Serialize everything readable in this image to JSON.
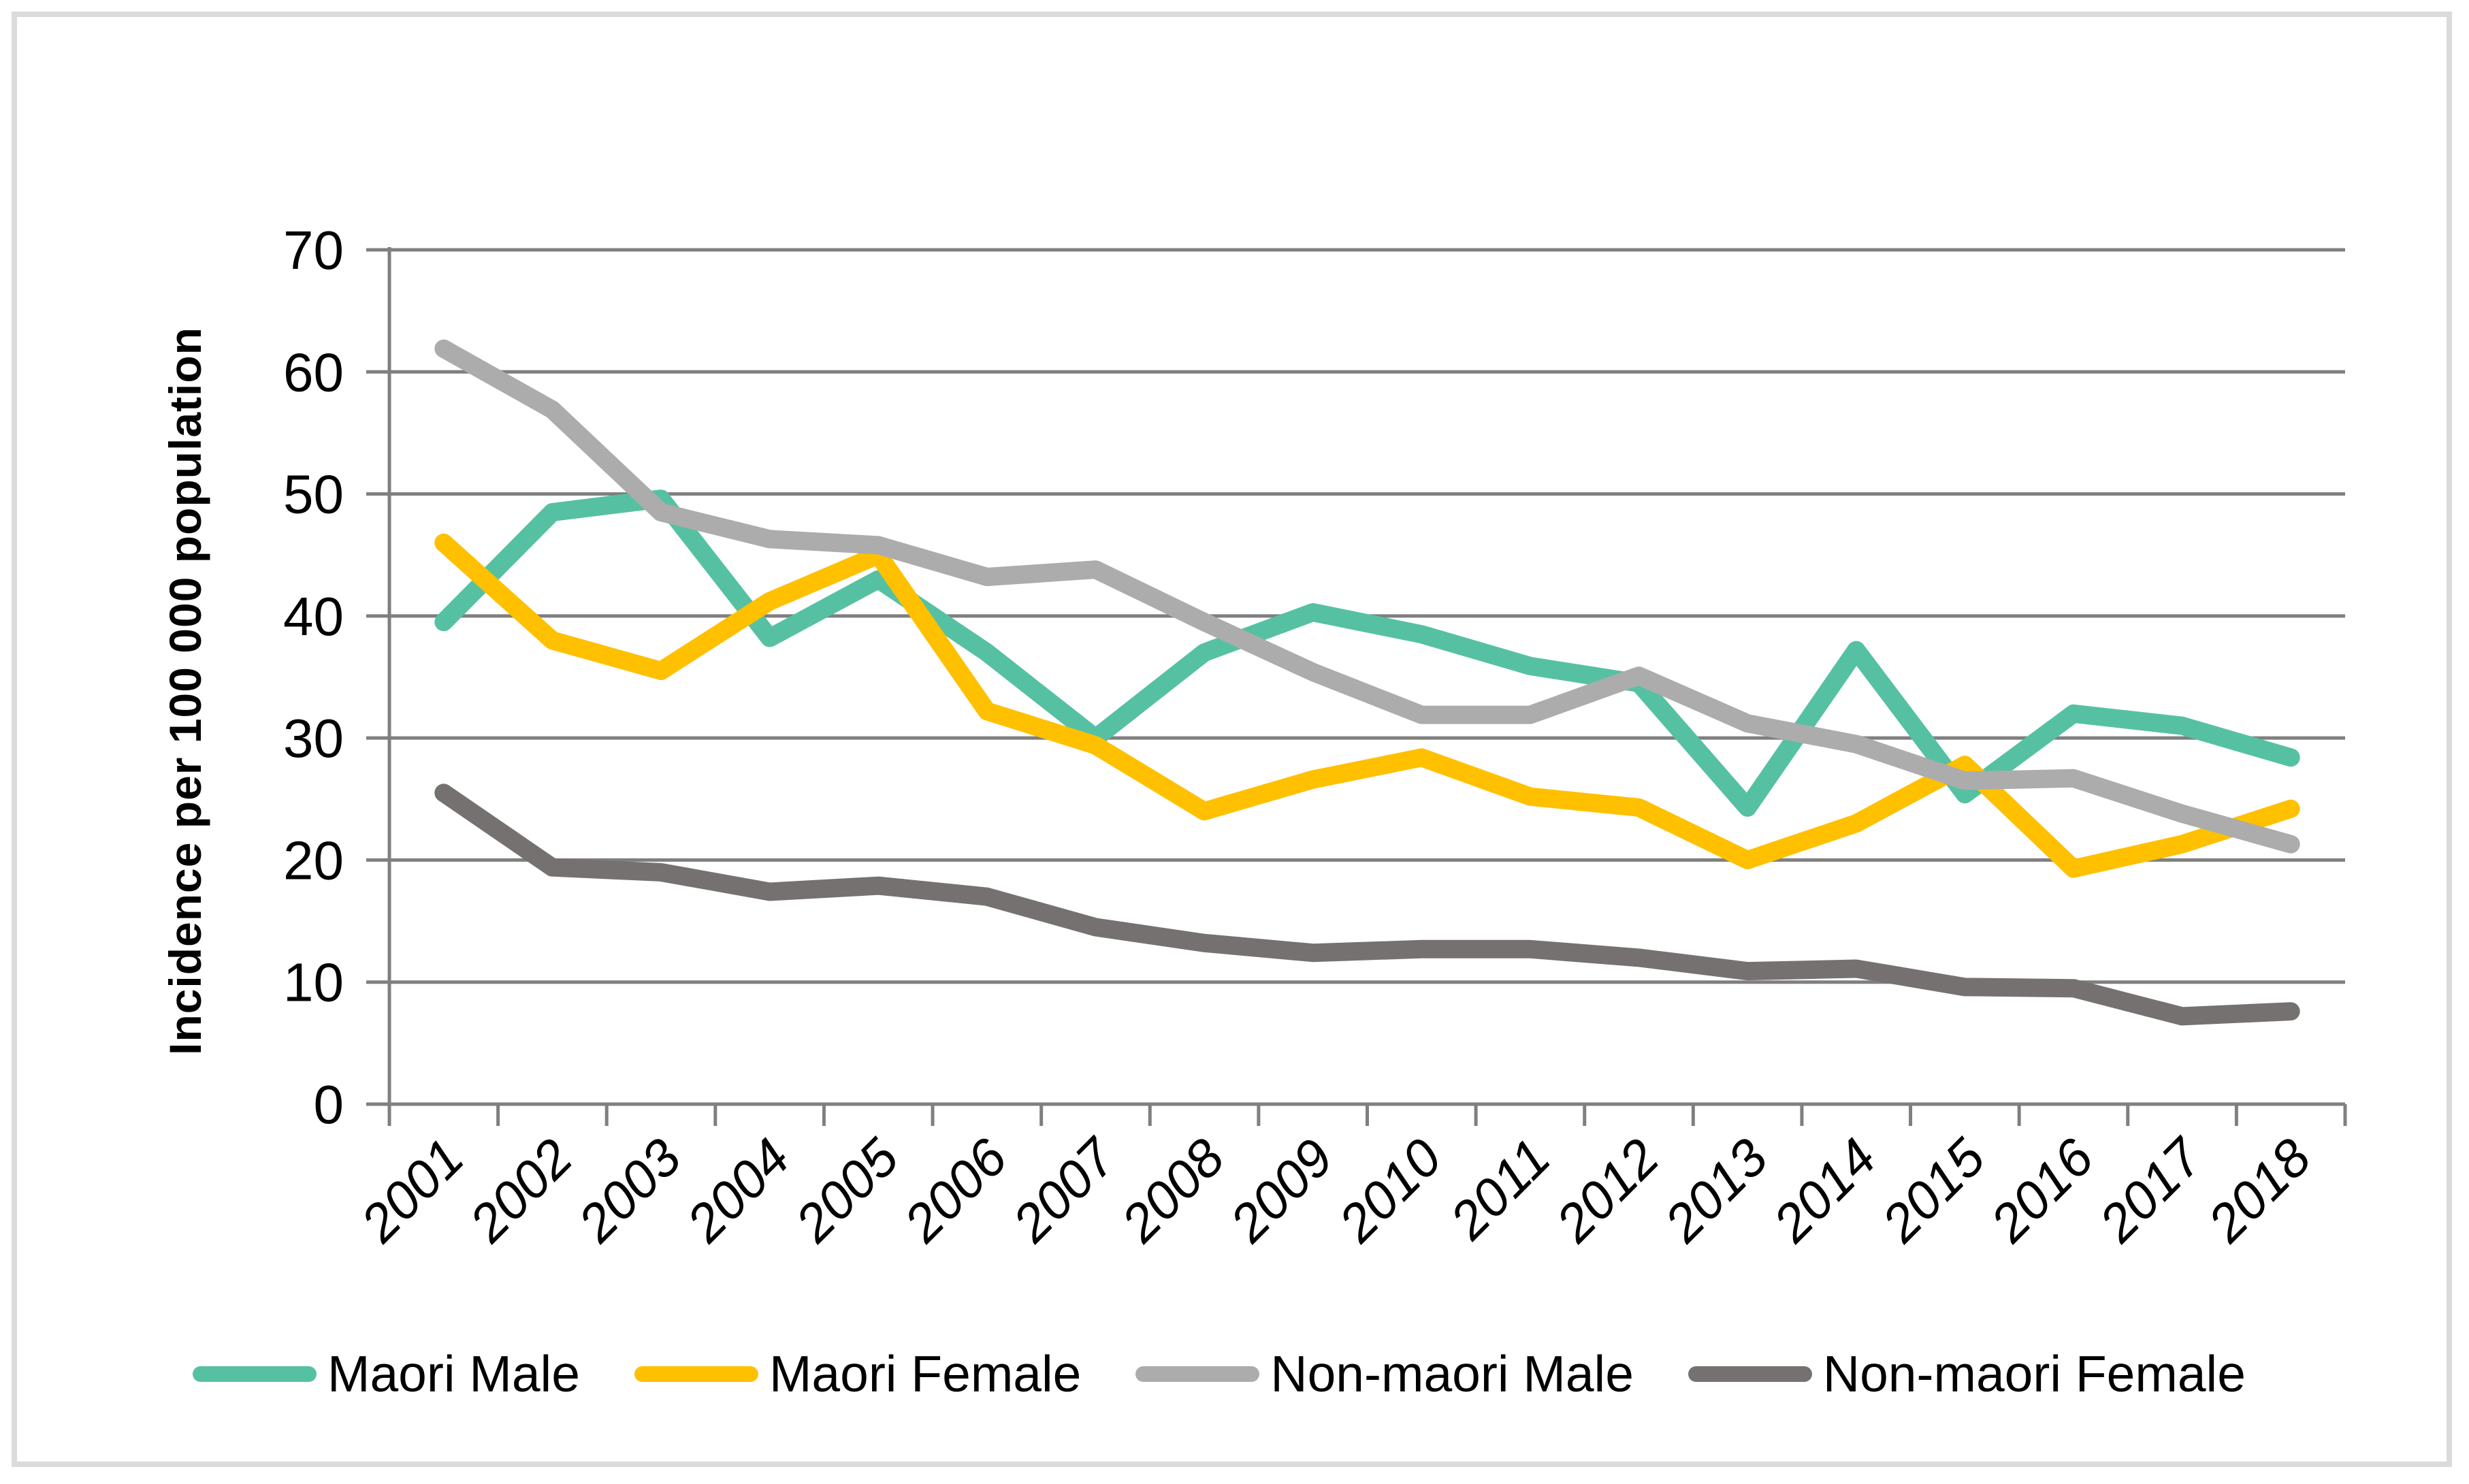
{
  "canvas": {
    "background": "#FFFFFF",
    "border_color": "#DBDBDB"
  },
  "chart_data": {
    "type": "line",
    "title": "",
    "xlabel": "",
    "ylabel": "Incidence per 100 000 population",
    "categories": [
      "2001",
      "2002",
      "2003",
      "2004",
      "2005",
      "2006",
      "2007",
      "2008",
      "2009",
      "2010",
      "2011",
      "2012",
      "2013",
      "2014",
      "2015",
      "2016",
      "2017",
      "2018"
    ],
    "ylim": [
      0,
      70
    ],
    "ytick_step": 10,
    "yticks": [
      0,
      10,
      20,
      30,
      40,
      50,
      60,
      70
    ],
    "grid": "horizontal",
    "legend_position": "bottom",
    "axis_color": "#7F7F7F",
    "tick_label_rotation_deg": -45,
    "series": [
      {
        "name": "Maori Male",
        "color": "#56C1A2",
        "values": [
          39.5,
          48.5,
          49.6,
          38.2,
          43.0,
          37.0,
          30.0,
          37.0,
          40.3,
          38.5,
          35.9,
          34.5,
          24.3,
          37.2,
          25.4,
          32.0,
          31.0,
          28.4
        ]
      },
      {
        "name": "Maori Female",
        "color": "#FFC000",
        "values": [
          46.0,
          38.0,
          35.5,
          41.2,
          45.0,
          32.2,
          29.4,
          24.0,
          26.6,
          28.4,
          25.2,
          24.3,
          20.0,
          23.0,
          27.8,
          19.3,
          21.3,
          24.2
        ]
      },
      {
        "name": "Non-maori Male",
        "color": "#ACACAC",
        "values": [
          61.9,
          56.9,
          48.5,
          46.3,
          45.8,
          43.2,
          43.8,
          39.5,
          35.4,
          31.9,
          31.9,
          35.1,
          31.2,
          29.5,
          26.5,
          26.7,
          23.8,
          21.3
        ]
      },
      {
        "name": "Non-maori Female",
        "color": "#767171",
        "values": [
          25.5,
          19.4,
          19.0,
          17.4,
          17.9,
          17.0,
          14.5,
          13.2,
          12.4,
          12.7,
          12.7,
          12.0,
          10.9,
          11.1,
          9.6,
          9.5,
          7.2,
          7.6
        ]
      }
    ]
  }
}
